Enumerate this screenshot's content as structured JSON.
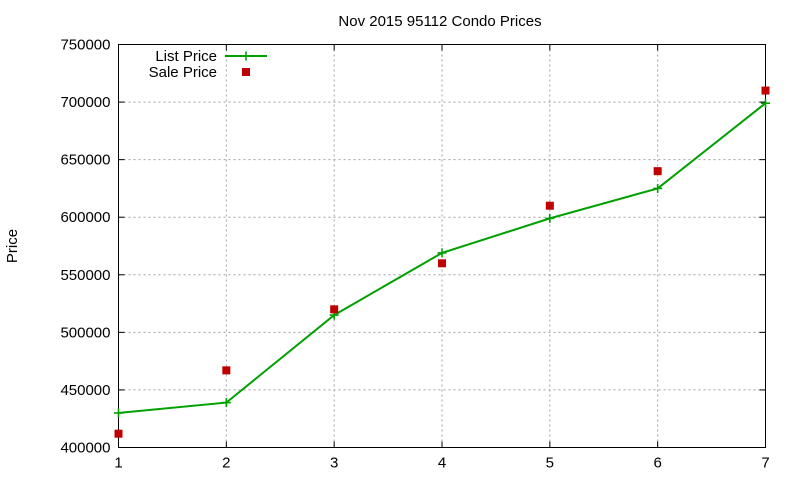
{
  "chart_data": {
    "type": "line",
    "title": "Nov 2015 95112 Condo Prices",
    "xlabel": "",
    "ylabel": "Price",
    "x": [
      1,
      2,
      3,
      4,
      5,
      6,
      7
    ],
    "xlim": [
      1,
      7
    ],
    "ylim": [
      400000,
      750000
    ],
    "x_ticks": [
      "1",
      "2",
      "3",
      "4",
      "5",
      "6",
      "7"
    ],
    "y_ticks": [
      "400000",
      "450000",
      "500000",
      "550000",
      "600000",
      "650000",
      "700000",
      "750000"
    ],
    "grid": true,
    "legend_position": "top-left",
    "series": [
      {
        "name": "List Price",
        "style": "line-with-plus-markers",
        "color": "#00a000",
        "values": [
          430000,
          439000,
          515000,
          569000,
          599000,
          625000,
          699000
        ]
      },
      {
        "name": "Sale Price",
        "style": "square-markers",
        "color": "#c00000",
        "values": [
          412000,
          467000,
          520000,
          560000,
          610000,
          640000,
          710000
        ]
      }
    ]
  }
}
